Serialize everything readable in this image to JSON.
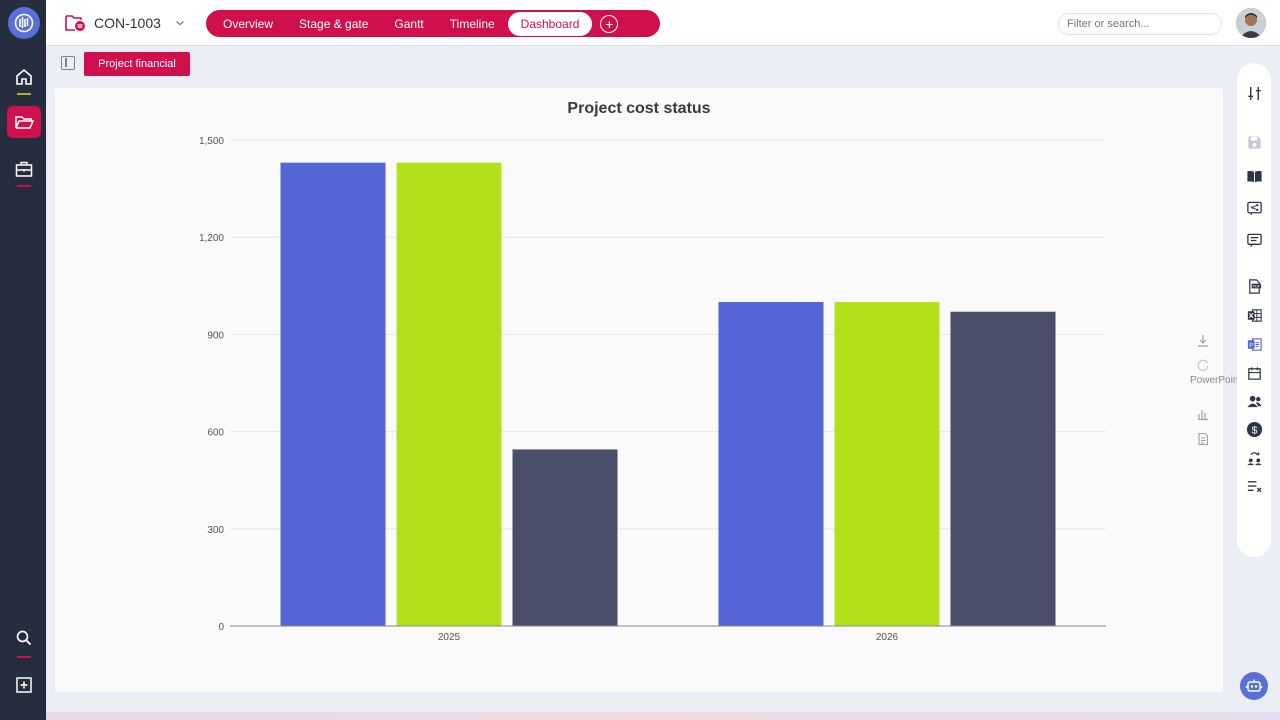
{
  "header": {
    "project_id": "CON-1003",
    "tabs": [
      "Overview",
      "Stage & gate",
      "Gantt",
      "Timeline",
      "Dashboard"
    ],
    "active_tab": "Dashboard",
    "search_placeholder": "Filter or search..."
  },
  "subbar": {
    "button_label": "Project financial"
  },
  "tooltip_text": "PowerPoint",
  "colors": {
    "accent": "#d0104c",
    "rail": "#262d3f"
  },
  "chart_data": {
    "type": "bar",
    "title": "Project cost status",
    "categories": [
      "2025",
      "2026"
    ],
    "series": [
      {
        "color": "#5465d6",
        "values": [
          1430,
          1000
        ]
      },
      {
        "color": "#b2e11c",
        "values": [
          1430,
          1000
        ]
      },
      {
        "color": "#4b4e69",
        "values": [
          545,
          970
        ]
      }
    ],
    "yticks": [
      "0",
      "300",
      "600",
      "900",
      "1,200",
      "1,500"
    ],
    "ylim": [
      0,
      1500
    ],
    "grid": true
  }
}
